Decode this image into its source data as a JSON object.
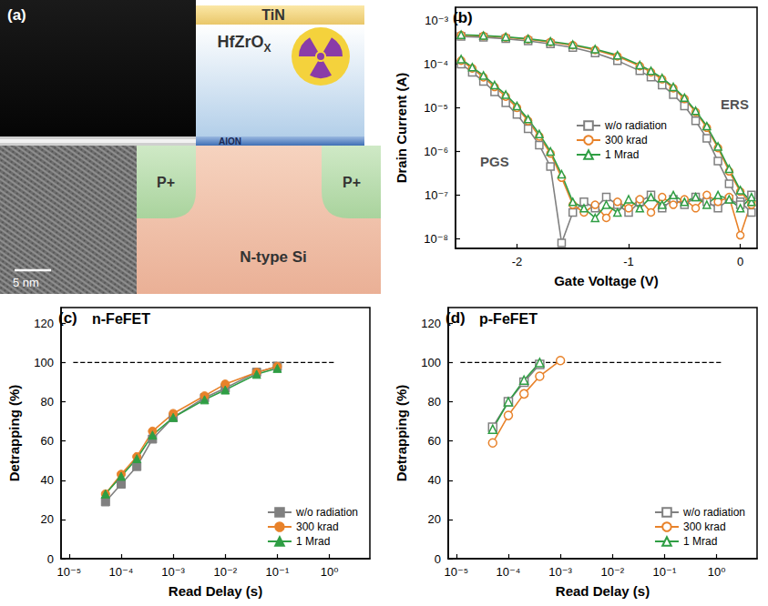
{
  "diagram": {
    "label": "(a)",
    "scale_bar": "5 nm",
    "layers": {
      "top": "TiN",
      "oxide": {
        "text": "HfZrO",
        "subscript": "X"
      },
      "interlayer": "AlON",
      "source": "P+",
      "drain": "P+",
      "substrate": "N-type Si"
    }
  },
  "chart_data": [
    {
      "type": "line",
      "label": "(b)",
      "log": "y",
      "grid": false,
      "legend": "center",
      "x_label": "Gate Voltage (V)",
      "y_label": "Drain Current (A)",
      "xlim": [
        -2.55,
        0.15
      ],
      "xticks": [
        -2,
        -1,
        0
      ],
      "ylim": [
        6e-09,
        0.002
      ],
      "yticks": [
        {
          "value": 1e-08,
          "label": "10⁻⁸"
        },
        {
          "value": 1e-07,
          "label": "10⁻⁷"
        },
        {
          "value": 1e-06,
          "label": "10⁻⁶"
        },
        {
          "value": 1e-05,
          "label": "10⁻⁵"
        },
        {
          "value": 0.0001,
          "label": "10⁻⁴"
        },
        {
          "value": 0.001,
          "label": "10⁻³"
        }
      ],
      "annotations": [
        {
          "text": "PGS",
          "x": -2.2,
          "y": 6e-07
        },
        {
          "text": "ERS",
          "x": -0.05,
          "y": 1.2e-05
        }
      ],
      "series": [
        {
          "name": "w/o radiation",
          "color": "#808080",
          "marker": "square-open",
          "x": [
            -2.5,
            -2.3,
            -2.1,
            -1.9,
            -1.7,
            -1.5,
            -1.3,
            -1.1,
            -0.9,
            -0.8,
            -0.7,
            -0.6,
            -0.5,
            -0.4,
            -0.3,
            -0.2,
            -0.1,
            0.0,
            0.1
          ],
          "values": [
            0.00043,
            0.00041,
            0.00038,
            0.00034,
            0.00029,
            0.00024,
            0.00018,
            0.00012,
            7e-05,
            5e-05,
            3.3e-05,
            2e-05,
            1.1e-05,
            5e-06,
            2e-06,
            6e-07,
            1.8e-07,
            7e-08,
            4e-08
          ]
        },
        {
          "name": "w/o radiation",
          "color": "#808080",
          "marker": "square-open",
          "x": [
            -2.5,
            -2.4,
            -2.3,
            -2.2,
            -2.1,
            -2.0,
            -1.9,
            -1.8,
            -1.7,
            -1.6,
            -1.5,
            -1.4,
            -1.3,
            -1.2,
            -1.1,
            -1.0,
            -0.9,
            -0.8,
            -0.7,
            -0.6,
            -0.5,
            -0.4,
            -0.3,
            -0.2,
            -0.1,
            0.0,
            0.1
          ],
          "values": [
            0.0001,
            6.5e-05,
            4e-05,
            2.3e-05,
            1.3e-05,
            7e-06,
            3.3e-06,
            1.4e-06,
            4.5e-07,
            8e-09,
            4e-08,
            7e-08,
            5e-08,
            9e-08,
            6e-08,
            4e-08,
            7e-08,
            1e-07,
            5e-08,
            8e-08,
            6e-08,
            9e-08,
            7e-08,
            5e-08,
            8e-08,
            6e-08,
            1e-07
          ]
        },
        {
          "name": "300 krad",
          "color": "#e8822a",
          "marker": "circle-open",
          "x": [
            -2.5,
            -2.3,
            -2.1,
            -1.9,
            -1.7,
            -1.5,
            -1.3,
            -1.1,
            -0.9,
            -0.8,
            -0.7,
            -0.6,
            -0.5,
            -0.4,
            -0.3,
            -0.2,
            -0.1,
            0.0,
            0.1
          ],
          "values": [
            0.00046,
            0.00044,
            0.00041,
            0.00037,
            0.00032,
            0.00027,
            0.00021,
            0.00015,
            9e-05,
            6.5e-05,
            4.5e-05,
            2.8e-05,
            1.6e-05,
            8e-06,
            3.5e-06,
            1.2e-06,
            3.5e-07,
            1.2e-07,
            6e-08
          ]
        },
        {
          "name": "300 krad",
          "color": "#e8822a",
          "marker": "circle-open",
          "x": [
            -2.5,
            -2.4,
            -2.3,
            -2.2,
            -2.1,
            -2.0,
            -1.9,
            -1.8,
            -1.7,
            -1.6,
            -1.5,
            -1.4,
            -1.3,
            -1.2,
            -1.1,
            -1.0,
            -0.9,
            -0.8,
            -0.7,
            -0.6,
            -0.5,
            -0.4,
            -0.3,
            -0.2,
            -0.1,
            0.0,
            0.1
          ],
          "values": [
            0.00012,
            8e-05,
            5e-05,
            3e-05,
            1.8e-05,
            1e-05,
            5e-06,
            2.2e-06,
            9e-07,
            2.5e-07,
            6e-08,
            4e-08,
            6e-08,
            3e-08,
            7e-08,
            5e-08,
            8e-08,
            4e-08,
            9e-08,
            6e-08,
            8e-08,
            5e-08,
            1e-07,
            7e-08,
            9e-08,
            1.2e-08,
            7e-08
          ]
        },
        {
          "name": "1 Mrad",
          "color": "#2f9e44",
          "marker": "triangle-open",
          "x": [
            -2.5,
            -2.3,
            -2.1,
            -1.9,
            -1.7,
            -1.5,
            -1.3,
            -1.1,
            -0.9,
            -0.8,
            -0.7,
            -0.6,
            -0.5,
            -0.4,
            -0.3,
            -0.2,
            -0.1,
            0.0,
            0.1
          ],
          "values": [
            0.00047,
            0.00045,
            0.00042,
            0.00038,
            0.00033,
            0.00028,
            0.00022,
            0.00016,
            9.5e-05,
            7e-05,
            4.8e-05,
            3e-05,
            1.7e-05,
            8.5e-06,
            3.8e-06,
            1.3e-06,
            4e-07,
            1.3e-07,
            7e-08
          ]
        },
        {
          "name": "1 Mrad",
          "color": "#2f9e44",
          "marker": "triangle-open",
          "x": [
            -2.5,
            -2.4,
            -2.3,
            -2.2,
            -2.1,
            -2.0,
            -1.9,
            -1.8,
            -1.7,
            -1.6,
            -1.5,
            -1.4,
            -1.3,
            -1.2,
            -1.1,
            -1.0,
            -0.9,
            -0.8,
            -0.7,
            -0.6,
            -0.5,
            -0.4,
            -0.3,
            -0.2,
            -0.1,
            0.0,
            0.1
          ],
          "values": [
            0.00013,
            8.5e-05,
            5.5e-05,
            3.3e-05,
            2e-05,
            1.1e-05,
            5.5e-06,
            2.5e-06,
            1e-06,
            3e-07,
            7e-08,
            5e-08,
            3e-08,
            6e-08,
            4e-08,
            8e-08,
            5e-08,
            9e-08,
            6e-08,
            1e-07,
            7e-08,
            9e-08,
            6e-08,
            1e-07,
            8e-08,
            5e-08,
            9e-08
          ]
        }
      ]
    },
    {
      "type": "line",
      "label": "(c)",
      "title": "n-FeFET",
      "log": "x",
      "grid": false,
      "legend": "lower right",
      "x_label": "Read Delay (s)",
      "y_label": "Detrapping (%)",
      "xlim": [
        7e-06,
        6
      ],
      "xticks": [
        {
          "value": 1e-05,
          "label": "10⁻⁵"
        },
        {
          "value": 0.0001,
          "label": "10⁻⁴"
        },
        {
          "value": 0.001,
          "label": "10⁻³"
        },
        {
          "value": 0.01,
          "label": "10⁻²"
        },
        {
          "value": 0.1,
          "label": "10⁻¹"
        },
        {
          "value": 1,
          "label": "10⁰"
        }
      ],
      "ylim": [
        0,
        128
      ],
      "yticks": [
        0,
        20,
        40,
        60,
        80,
        100,
        120
      ],
      "reference_line": {
        "y": 100,
        "x": [
          1.2e-05,
          1.3
        ]
      },
      "x": [
        5e-05,
        0.0001,
        0.0002,
        0.0004,
        0.001,
        0.004,
        0.01,
        0.04,
        0.1
      ],
      "series": [
        {
          "name": "w/o radiation",
          "color": "#808080",
          "marker": "square",
          "values": [
            29,
            38,
            47,
            61,
            72,
            82,
            87,
            95,
            98
          ]
        },
        {
          "name": "300 krad",
          "color": "#e8822a",
          "marker": "circle",
          "values": [
            33,
            43,
            52,
            65,
            74,
            83,
            89,
            95,
            98
          ]
        },
        {
          "name": "1 Mrad",
          "color": "#2f9e44",
          "marker": "triangle",
          "values": [
            33,
            42,
            51,
            63,
            72,
            81,
            86,
            94,
            97
          ]
        }
      ]
    },
    {
      "type": "line",
      "label": "(d)",
      "title": "p-FeFET",
      "log": "x",
      "grid": false,
      "legend": "lower right",
      "x_label": "Read Delay (s)",
      "y_label": "Detrapping (%)",
      "xlim": [
        7e-06,
        6
      ],
      "xticks": [
        {
          "value": 1e-05,
          "label": "10⁻⁵"
        },
        {
          "value": 0.0001,
          "label": "10⁻⁴"
        },
        {
          "value": 0.001,
          "label": "10⁻³"
        },
        {
          "value": 0.01,
          "label": "10⁻²"
        },
        {
          "value": 0.1,
          "label": "10⁻¹"
        },
        {
          "value": 1,
          "label": "10⁰"
        }
      ],
      "ylim": [
        0,
        128
      ],
      "yticks": [
        0,
        20,
        40,
        60,
        80,
        100,
        120
      ],
      "reference_line": {
        "y": 100,
        "x": [
          1.2e-05,
          1.3
        ]
      },
      "x": [
        5e-05,
        0.0001,
        0.0002,
        0.0004,
        0.001
      ],
      "series": [
        {
          "name": "w/o radiation",
          "color": "#808080",
          "marker": "square-open",
          "values": [
            67,
            80,
            90,
            99,
            null
          ]
        },
        {
          "name": "300 krad",
          "color": "#e8822a",
          "marker": "circle-open",
          "values": [
            59,
            73,
            84,
            93,
            101
          ]
        },
        {
          "name": "1 Mrad",
          "color": "#2f9e44",
          "marker": "triangle-open",
          "values": [
            66,
            80,
            91,
            100,
            null
          ]
        }
      ]
    }
  ]
}
